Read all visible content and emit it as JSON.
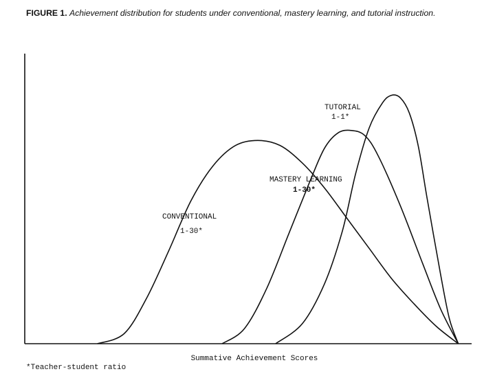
{
  "figure": {
    "label": "FIGURE 1.",
    "caption": "Achievement distribution for students under conventional, mastery learning, and tutorial instruction."
  },
  "footnote": "*Teacher-student ratio",
  "colors": {
    "ink": "#111111"
  },
  "chart_data": {
    "type": "line",
    "title": "",
    "xlabel": "Summative Achievement Scores",
    "ylabel": "",
    "xlim": [
      0,
      100
    ],
    "ylim": [
      0,
      100
    ],
    "grid": false,
    "legend": "none",
    "series": [
      {
        "name": "CONVENTIONAL",
        "label_lines": [
          "CONVENTIONAL",
          "1-30*"
        ],
        "x": [
          16,
          22,
          27,
          32,
          37,
          42,
          47,
          52,
          57,
          62,
          67,
          72,
          77,
          82,
          87,
          92,
          97
        ],
        "y": [
          0,
          4,
          18,
          37,
          57,
          71,
          79,
          81,
          79,
          72,
          62,
          50,
          38,
          26,
          16,
          7,
          0
        ]
      },
      {
        "name": "MASTERY LEARNING",
        "label_lines": [
          "MASTERY LEARNING",
          "1-30*"
        ],
        "x": [
          44,
          49,
          54,
          59,
          64,
          67,
          70,
          73,
          76,
          79,
          84,
          89,
          93,
          97
        ],
        "y": [
          0,
          6,
          22,
          44,
          66,
          78,
          84,
          85,
          83,
          75,
          55,
          32,
          14,
          0
        ]
      },
      {
        "name": "TUTORIAL",
        "label_lines": [
          "TUTORIAL",
          "1-1*"
        ],
        "x": [
          56,
          62,
          67,
          71,
          74,
          77,
          80,
          82,
          84,
          86,
          88,
          90,
          93,
          95,
          97
        ],
        "y": [
          0,
          8,
          24,
          45,
          68,
          86,
          96,
          99,
          98,
          92,
          79,
          58,
          28,
          10,
          0
        ]
      }
    ]
  }
}
